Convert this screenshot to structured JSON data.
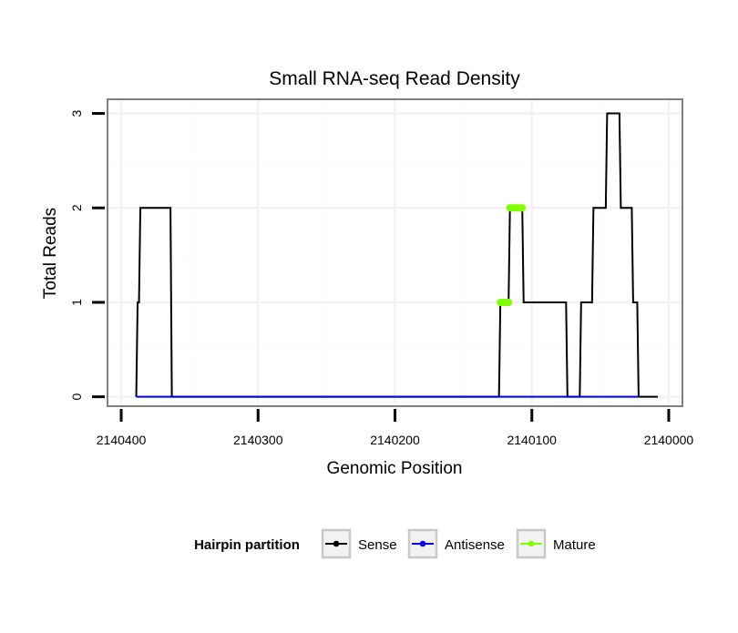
{
  "chart_data": {
    "type": "line",
    "title": "Small RNA-seq Read Density",
    "xlabel": "Genomic Position",
    "ylabel": "Total Reads",
    "xlim": [
      2140410,
      2139990
    ],
    "x_reversed": true,
    "ylim": [
      -0.1,
      3.15
    ],
    "grid": true,
    "x_ticks": [
      2140400,
      2140300,
      2140200,
      2140100,
      2140000
    ],
    "x_tick_labels": [
      "2140400",
      "2140300",
      "2140200",
      "2140100",
      "2140000"
    ],
    "y_ticks": [
      0,
      1,
      2,
      3
    ],
    "y_tick_labels": [
      "0",
      "1",
      "2",
      "3"
    ],
    "series": [
      {
        "name": "Sense",
        "color": "#000000",
        "x": [
          2140389,
          2140388,
          2140387,
          2140386,
          2140364,
          2140363,
          2140124,
          2140123,
          2140117,
          2140116,
          2140107,
          2140106,
          2140075,
          2140074,
          2140065,
          2140064,
          2140056,
          2140055,
          2140046,
          2140045,
          2140036,
          2140035,
          2140027,
          2140026,
          2140023,
          2140022,
          2140008
        ],
        "y": [
          0,
          1,
          1,
          2,
          2,
          0,
          0,
          1,
          1,
          2,
          2,
          1,
          1,
          0,
          0,
          1,
          1,
          2,
          2,
          3,
          3,
          2,
          2,
          1,
          1,
          0,
          0
        ]
      },
      {
        "name": "Antisense",
        "color": "#0000ff",
        "x": [
          2140389,
          2140022
        ],
        "y": [
          0,
          0
        ]
      },
      {
        "name": "Mature",
        "color": "#7fff00",
        "x": [
          2140123,
          2140117,
          2140116,
          2140107
        ],
        "y": [
          1,
          1,
          2,
          2
        ],
        "segments": [
          [
            [
              2140123,
              1
            ],
            [
              2140117,
              1
            ]
          ],
          [
            [
              2140116,
              2
            ],
            [
              2140107,
              2
            ]
          ]
        ]
      }
    ],
    "legend": {
      "title": "Hairpin partition",
      "position": "bottom",
      "entries": [
        "Sense",
        "Antisense",
        "Mature"
      ]
    }
  }
}
